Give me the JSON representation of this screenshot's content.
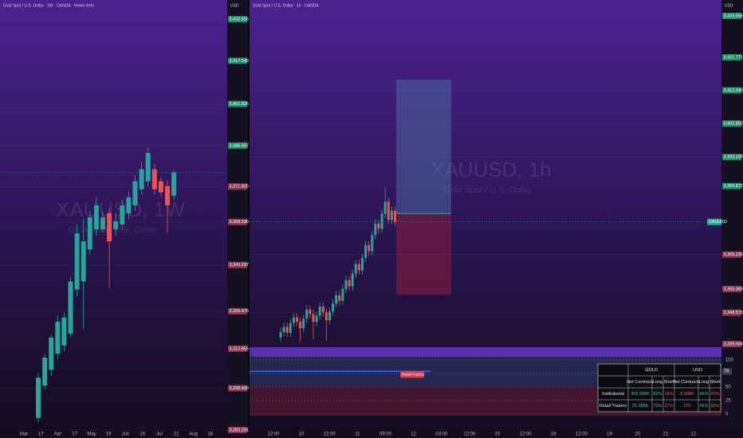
{
  "chart_data": [
    {
      "type": "candlestick",
      "title": "Gold Spot / U.S. Dollar · 1W · OANDA · Heikin Ashi",
      "watermark": "XAUUSD, 1W",
      "subtitle": "Gold Spot / U.S. Dollar",
      "axis_unit": "USD",
      "x_labels": [
        "Mar",
        "17",
        "Apr",
        "17",
        "May",
        "19",
        "Jun",
        "16",
        "Jul",
        "21",
        "Aug",
        "18"
      ],
      "open": [
        3287.7,
        3299.4,
        3305.2,
        3311.0,
        3314.0,
        3318.3,
        3334.4,
        3337.3,
        3349.0,
        3356.2,
        3356.2,
        3362.1,
        3356.2,
        3358.0,
        3362.1,
        3365.0,
        3370.8,
        3373.7,
        3378.1,
        3373.7,
        3372.0,
        3368.5
      ],
      "high": [
        3304.0,
        3311.0,
        3318.0,
        3325.0,
        3326.0,
        3339.0,
        3358.0,
        3360.0,
        3363.0,
        3368.0,
        3363.0,
        3364.0,
        3362.0,
        3367.0,
        3370.0,
        3376.0,
        3381.0,
        3386.0,
        3380.0,
        3375.0,
        3374.0,
        3378.0
      ],
      "low": [
        3286.0,
        3298.0,
        3303.0,
        3309.0,
        3312.0,
        3317.0,
        3332.0,
        3320.0,
        3347.0,
        3354.0,
        3355.0,
        3335.0,
        3354.0,
        3356.0,
        3360.0,
        3363.0,
        3369.0,
        3372.0,
        3369.0,
        3368.0,
        3355.0,
        3367.0
      ],
      "close": [
        3302.3,
        3309.6,
        3316.9,
        3322.7,
        3324.2,
        3337.3,
        3354.8,
        3351.9,
        3360.6,
        3365.0,
        3360.6,
        3351.9,
        3359.2,
        3365.0,
        3367.9,
        3373.7,
        3378.1,
        3384.0,
        3370.8,
        3369.7,
        3365.0,
        3376.9
      ],
      "up_color": "#26a69a",
      "down_color": "#ef5350",
      "ylim": [
        3282.4,
        3435.3
      ],
      "yticks": [
        {
          "value": 3432.656,
          "label": "3,432.656"
        },
        {
          "value": 3417.549,
          "label": "3,417.549"
        },
        {
          "value": 3401.826,
          "label": "3,401.826"
        },
        {
          "value": 3386.697,
          "label": "3,386.697"
        },
        {
          "value": 3371.825,
          "label": "3,371.825"
        },
        {
          "value": 3358.936,
          "label": "3,358.936"
        },
        {
          "value": 3343.297,
          "label": "3,343.297"
        },
        {
          "value": 3326.476,
          "label": "3,326.476"
        },
        {
          "value": 3312.855,
          "label": "3,312.855"
        },
        {
          "value": 3298.49,
          "label": "3,298.490"
        },
        {
          "value": 3283.291,
          "label": "3,283.291"
        }
      ]
    },
    {
      "type": "candlestick",
      "title": "Gold Spot / U.S. Dollar · 1h · OANDA",
      "watermark": "XAUUSD, 1h",
      "subtitle": "Gold Spot / U.S. Dollar",
      "axis_unit": "USD",
      "last_tag": "XAUUSD",
      "x_labels": [
        "12:00",
        "10",
        "12:00",
        "11",
        "09:00",
        "12",
        "03:00",
        "12:00",
        "15",
        "12:00",
        "18",
        "12:00",
        "19",
        "20",
        "21",
        "12"
      ],
      "open": [
        3341.5,
        3343.0,
        3344.5,
        3342.8,
        3345.6,
        3347.2,
        3346.0,
        3344.1,
        3346.8,
        3349.5,
        3348.2,
        3345.9,
        3347.7,
        3350.3,
        3348.6,
        3346.4,
        3348.9,
        3351.2,
        3353.6,
        3352.0,
        3355.4,
        3357.9,
        3356.1,
        3359.8,
        3362.5,
        3360.7,
        3364.3,
        3367.9,
        3366.2,
        3370.8,
        3374.1,
        3372.6,
        3376.9,
        3380.4,
        3375.2,
        3377.8
      ],
      "high": [
        3344.2,
        3345.7,
        3345.7,
        3346.8,
        3348.4,
        3348.4,
        3347.2,
        3348.0,
        3350.7,
        3350.7,
        3349.4,
        3348.9,
        3351.5,
        3351.5,
        3349.8,
        3350.1,
        3352.4,
        3354.8,
        3354.8,
        3356.6,
        3359.1,
        3359.1,
        3361.0,
        3363.7,
        3363.7,
        3365.5,
        3369.1,
        3369.1,
        3372.0,
        3375.3,
        3375.3,
        3378.1,
        3384.5,
        3381.6,
        3379.0,
        3379.0
      ],
      "low": [
        3340.3,
        3341.8,
        3341.6,
        3341.6,
        3344.4,
        3344.8,
        3340.2,
        3342.9,
        3345.6,
        3347.0,
        3341.0,
        3344.7,
        3346.5,
        3347.4,
        3340.5,
        3345.2,
        3347.7,
        3350.0,
        3350.8,
        3350.8,
        3354.2,
        3354.9,
        3354.9,
        3358.6,
        3359.5,
        3359.5,
        3363.1,
        3365.0,
        3365.0,
        3369.6,
        3371.4,
        3371.4,
        3375.7,
        3374.0,
        3374.0,
        3373.4
      ],
      "close": [
        3343.0,
        3344.5,
        3342.8,
        3345.6,
        3347.2,
        3346.0,
        3344.1,
        3346.8,
        3349.5,
        3348.2,
        3345.9,
        3347.7,
        3350.3,
        3348.6,
        3346.4,
        3348.9,
        3351.2,
        3353.6,
        3352.0,
        3355.4,
        3357.9,
        3356.1,
        3359.8,
        3362.5,
        3360.7,
        3364.3,
        3367.9,
        3366.2,
        3370.8,
        3374.1,
        3372.6,
        3376.9,
        3380.4,
        3375.2,
        3377.8,
        3374.6
      ],
      "up_color": "#26a69a",
      "down_color": "#ef5350",
      "position": {
        "target": 3415.4,
        "entry": 3377.0,
        "stop": 3353.7
      },
      "ylim": [
        3338.9,
        3434.8
      ],
      "yticks": [
        {
          "value": 3433.656,
          "label": "3,433.656"
        },
        {
          "value": 3421.771,
          "label": "3,421.771"
        },
        {
          "value": 3412.34,
          "label": "3,412.340"
        },
        {
          "value": 3402.803,
          "label": "3,402.803"
        },
        {
          "value": 3393.193,
          "label": "3,393.193"
        },
        {
          "value": 3384.872,
          "label": "3,384.872"
        },
        {
          "value": 3365.236,
          "label": "3,365.236"
        },
        {
          "value": 3355.369,
          "label": "3,355.369"
        },
        {
          "value": 3348.573,
          "label": "3,348.573"
        },
        {
          "value": 3339.584,
          "label": "3,339.584"
        }
      ]
    },
    {
      "type": "level",
      "label": "Retail Traders",
      "value": 79,
      "color": "#2962ff",
      "ylim": [
        0,
        100
      ],
      "yticks": [
        0,
        25,
        50,
        75,
        100
      ]
    }
  ],
  "table": {
    "groups": [
      "GOLD",
      "USD"
    ],
    "columns": [
      "Net Contracts",
      "Long",
      "Short",
      "Net Contracts",
      "Long",
      "Short"
    ],
    "rows": [
      [
        "Institutional",
        "302.988K",
        "82%",
        "18%",
        "-8.988K",
        "45%",
        "55%"
      ],
      [
        "Retail Traders",
        "25.388K",
        "73%",
        "27%",
        "-175",
        "45%",
        "55%"
      ]
    ]
  }
}
